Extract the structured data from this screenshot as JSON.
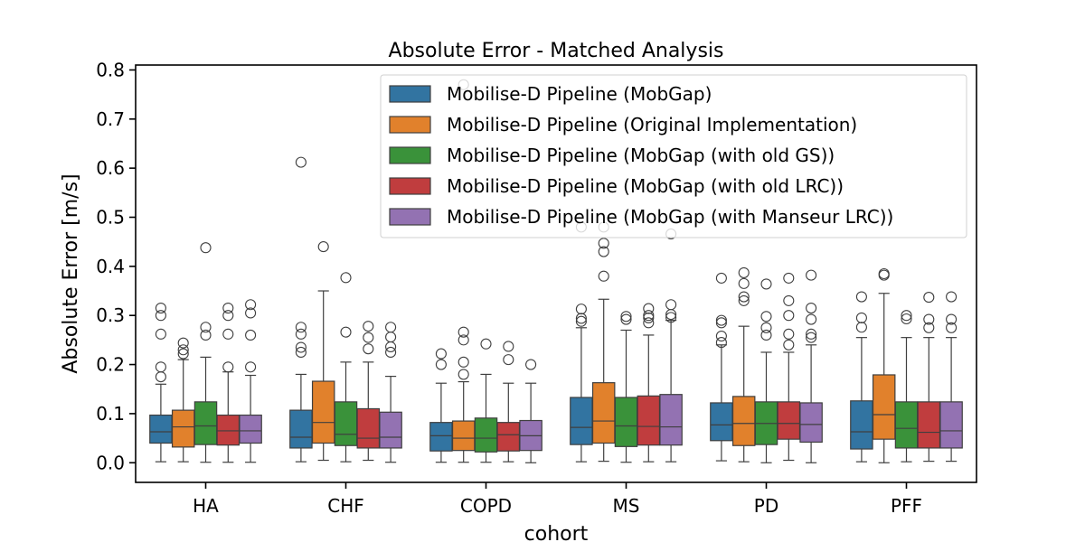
{
  "chart_data": {
    "type": "box",
    "title": "Absolute Error - Matched Analysis",
    "xlabel": "cohort",
    "ylabel": "Absolute Error [m/s]",
    "ylim": [
      -0.04,
      0.81
    ],
    "yticks": [
      "0.0",
      "0.1",
      "0.2",
      "0.3",
      "0.4",
      "0.5",
      "0.6",
      "0.7",
      "0.8"
    ],
    "categories": [
      "HA",
      "CHF",
      "COPD",
      "MS",
      "PD",
      "PFF"
    ],
    "grid": false,
    "legend_position": "top-right",
    "series": [
      {
        "name": "Mobilise-D Pipeline (MobGap)",
        "color": "#3274a1",
        "boxes": [
          {
            "whislo": 0.002,
            "q1": 0.04,
            "med": 0.063,
            "q3": 0.097,
            "whishi": 0.16,
            "fliers": [
              0.175,
              0.195,
              0.262,
              0.3,
              0.315
            ]
          },
          {
            "whislo": 0.002,
            "q1": 0.03,
            "med": 0.052,
            "q3": 0.107,
            "whishi": 0.18,
            "fliers": [
              0.225,
              0.235,
              0.262,
              0.276,
              0.612
            ]
          },
          {
            "whislo": 0.001,
            "q1": 0.024,
            "med": 0.055,
            "q3": 0.082,
            "whishi": 0.162,
            "fliers": [
              0.2,
              0.222
            ]
          },
          {
            "whislo": 0.002,
            "q1": 0.037,
            "med": 0.072,
            "q3": 0.133,
            "whishi": 0.275,
            "fliers": [
              0.288,
              0.294,
              0.313,
              0.48
            ]
          },
          {
            "whislo": 0.004,
            "q1": 0.045,
            "med": 0.077,
            "q3": 0.122,
            "whishi": 0.24,
            "fliers": [
              0.245,
              0.258,
              0.285,
              0.29,
              0.376
            ]
          },
          {
            "whislo": 0.002,
            "q1": 0.028,
            "med": 0.063,
            "q3": 0.126,
            "whishi": 0.255,
            "fliers": [
              0.276,
              0.295,
              0.338
            ]
          }
        ]
      },
      {
        "name": "Mobilise-D Pipeline (Original Implementation)",
        "color": "#e1812c",
        "boxes": [
          {
            "whislo": 0.002,
            "q1": 0.032,
            "med": 0.073,
            "q3": 0.107,
            "whishi": 0.21,
            "fliers": [
              0.222,
              0.23,
              0.244
            ]
          },
          {
            "whislo": 0.005,
            "q1": 0.04,
            "med": 0.082,
            "q3": 0.166,
            "whishi": 0.35,
            "fliers": [
              0.44
            ]
          },
          {
            "whislo": 0.001,
            "q1": 0.025,
            "med": 0.05,
            "q3": 0.085,
            "whishi": 0.165,
            "fliers": [
              0.18,
              0.205,
              0.25,
              0.266,
              0.77
            ]
          },
          {
            "whislo": 0.003,
            "q1": 0.04,
            "med": 0.085,
            "q3": 0.163,
            "whishi": 0.333,
            "fliers": [
              0.38,
              0.43,
              0.447,
              0.48
            ]
          },
          {
            "whislo": 0.002,
            "q1": 0.035,
            "med": 0.08,
            "q3": 0.135,
            "whishi": 0.278,
            "fliers": [
              0.33,
              0.338,
              0.365,
              0.387
            ]
          },
          {
            "whislo": 0.0,
            "q1": 0.048,
            "med": 0.098,
            "q3": 0.179,
            "whishi": 0.345,
            "fliers": [
              0.382,
              0.385
            ]
          }
        ]
      },
      {
        "name": "Mobilise-D Pipeline (MobGap (with old GS))",
        "color": "#3a923a",
        "boxes": [
          {
            "whislo": 0.001,
            "q1": 0.037,
            "med": 0.075,
            "q3": 0.124,
            "whishi": 0.215,
            "fliers": [
              0.26,
              0.276,
              0.438
            ]
          },
          {
            "whislo": 0.002,
            "q1": 0.035,
            "med": 0.058,
            "q3": 0.124,
            "whishi": 0.205,
            "fliers": [
              0.266,
              0.377
            ]
          },
          {
            "whislo": 0.001,
            "q1": 0.022,
            "med": 0.05,
            "q3": 0.091,
            "whishi": 0.18,
            "fliers": [
              0.242
            ]
          },
          {
            "whislo": 0.001,
            "q1": 0.033,
            "med": 0.075,
            "q3": 0.133,
            "whishi": 0.27,
            "fliers": [
              0.292,
              0.298
            ]
          },
          {
            "whislo": 0.0,
            "q1": 0.037,
            "med": 0.08,
            "q3": 0.124,
            "whishi": 0.225,
            "fliers": [
              0.26,
              0.275,
              0.298,
              0.364
            ]
          },
          {
            "whislo": 0.002,
            "q1": 0.03,
            "med": 0.07,
            "q3": 0.124,
            "whishi": 0.255,
            "fliers": [
              0.293,
              0.3
            ]
          }
        ]
      },
      {
        "name": "Mobilise-D Pipeline (MobGap (with old LRC))",
        "color": "#c03d3e",
        "boxes": [
          {
            "whislo": 0.001,
            "q1": 0.036,
            "med": 0.065,
            "q3": 0.097,
            "whishi": 0.185,
            "fliers": [
              0.195,
              0.262,
              0.3,
              0.315
            ]
          },
          {
            "whislo": 0.005,
            "q1": 0.03,
            "med": 0.05,
            "q3": 0.11,
            "whishi": 0.205,
            "fliers": [
              0.232,
              0.255,
              0.278
            ]
          },
          {
            "whislo": 0.002,
            "q1": 0.024,
            "med": 0.057,
            "q3": 0.082,
            "whishi": 0.162,
            "fliers": [
              0.21,
              0.237
            ]
          },
          {
            "whislo": 0.002,
            "q1": 0.036,
            "med": 0.074,
            "q3": 0.136,
            "whishi": 0.26,
            "fliers": [
              0.285,
              0.295,
              0.3,
              0.314
            ]
          },
          {
            "whislo": 0.005,
            "q1": 0.048,
            "med": 0.08,
            "q3": 0.124,
            "whishi": 0.225,
            "fliers": [
              0.24,
              0.262,
              0.3,
              0.33,
              0.376
            ]
          },
          {
            "whislo": 0.003,
            "q1": 0.03,
            "med": 0.062,
            "q3": 0.124,
            "whishi": 0.255,
            "fliers": [
              0.275,
              0.292,
              0.337
            ]
          }
        ]
      },
      {
        "name": "Mobilise-D Pipeline (MobGap (with Manseur LRC))",
        "color": "#9372b2",
        "boxes": [
          {
            "whislo": 0.001,
            "q1": 0.04,
            "med": 0.065,
            "q3": 0.097,
            "whishi": 0.178,
            "fliers": [
              0.195,
              0.26,
              0.305,
              0.322
            ]
          },
          {
            "whislo": 0.001,
            "q1": 0.03,
            "med": 0.052,
            "q3": 0.103,
            "whishi": 0.176,
            "fliers": [
              0.225,
              0.236,
              0.256,
              0.276
            ]
          },
          {
            "whislo": 0.0,
            "q1": 0.025,
            "med": 0.055,
            "q3": 0.086,
            "whishi": 0.162,
            "fliers": [
              0.2
            ]
          },
          {
            "whislo": 0.002,
            "q1": 0.036,
            "med": 0.073,
            "q3": 0.139,
            "whishi": 0.29,
            "fliers": [
              0.296,
              0.302,
              0.322,
              0.466
            ]
          },
          {
            "whislo": 0.0,
            "q1": 0.042,
            "med": 0.078,
            "q3": 0.122,
            "whishi": 0.24,
            "fliers": [
              0.255,
              0.262,
              0.292,
              0.315,
              0.382
            ]
          },
          {
            "whislo": 0.003,
            "q1": 0.03,
            "med": 0.065,
            "q3": 0.124,
            "whishi": 0.255,
            "fliers": [
              0.275,
              0.292,
              0.338
            ]
          }
        ]
      }
    ]
  }
}
